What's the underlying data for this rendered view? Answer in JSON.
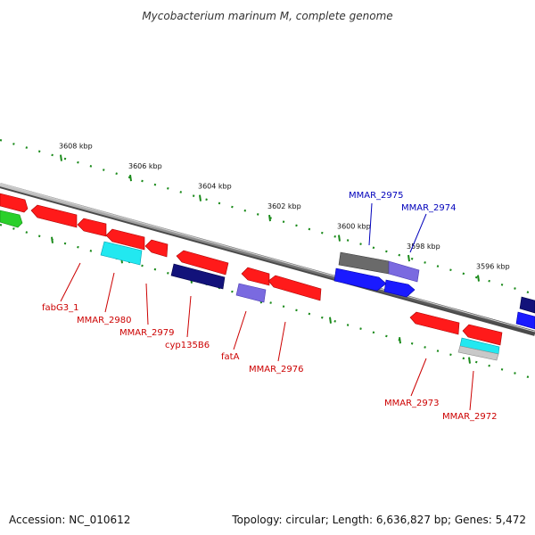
{
  "title": "Mycobacterium marinum M, complete genome",
  "footer": {
    "accession": "Accession: NC_010612",
    "summary": "Topology: circular; Length: 6,636,827 bp; Genes: 5,472"
  },
  "scale": {
    "unit": "kbp",
    "ticks": [
      {
        "pos": 3596,
        "label": "3596 kbp"
      },
      {
        "pos": 3598,
        "label": "3598 kbp"
      },
      {
        "pos": 3600,
        "label": "3600 kbp"
      },
      {
        "pos": 3602,
        "label": "3602 kbp"
      },
      {
        "pos": 3604,
        "label": "3604 kbp"
      },
      {
        "pos": 3606,
        "label": "3606 kbp"
      },
      {
        "pos": 3608,
        "label": "3608 kbp"
      }
    ]
  },
  "colors": {
    "backbone": "#8a8a8a",
    "tick": "#1a8a1a",
    "label_red": "#cc0000",
    "label_blue": "#0000bb",
    "gene_red": "#ff1a1a",
    "gene_blue": "#1a1aff",
    "gene_navy": "#12127a",
    "gene_purple": "#7a6ae0",
    "gene_gray": "#6a6a6a",
    "gene_cyan": "#22e8f0",
    "gene_green": "#2ad02a",
    "gene_silver": "#c8c8c8"
  },
  "gene_labels": [
    {
      "name": "fabG3_1",
      "color": "red"
    },
    {
      "name": "MMAR_2980",
      "color": "red"
    },
    {
      "name": "MMAR_2979",
      "color": "red"
    },
    {
      "name": "cyp135B6",
      "color": "red"
    },
    {
      "name": "fatA",
      "color": "red"
    },
    {
      "name": "MMAR_2976",
      "color": "red"
    },
    {
      "name": "MMAR_2975",
      "color": "blue"
    },
    {
      "name": "MMAR_2974",
      "color": "blue"
    },
    {
      "name": "MMAR_2973",
      "color": "red"
    },
    {
      "name": "MMAR_2972",
      "color": "red"
    }
  ]
}
